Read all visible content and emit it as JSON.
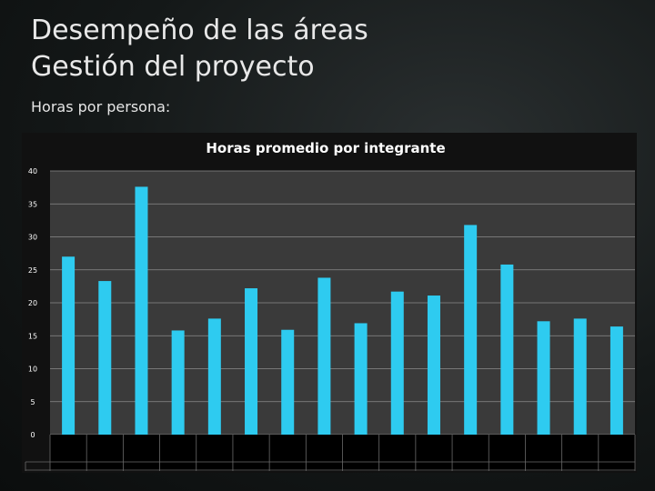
{
  "slide": {
    "title_line1": "Desempeño de las áreas",
    "title_line2": "Gestión del proyecto",
    "subtitle": "Horas por persona:"
  },
  "colors": {
    "bar": "#2ecbf0",
    "plot_bg": "#3a3a3a",
    "chart_bg": "#111111",
    "grid": "#8c8c8c",
    "text": "#ffffff"
  },
  "chart_data": {
    "type": "bar",
    "title": "Horas promedio por integrante",
    "xlabel": "",
    "ylabel": "",
    "ylim": [
      0,
      40
    ],
    "yticks": [
      0,
      5,
      10,
      15,
      20,
      25,
      30,
      35,
      40
    ],
    "grid": true,
    "categories": [
      "",
      "",
      "",
      "",
      "",
      "",
      "",
      "",
      "",
      "",
      "",
      "",
      "",
      "",
      "",
      ""
    ],
    "values": [
      27,
      23.3,
      37.6,
      15.8,
      17.6,
      22.2,
      15.9,
      23.8,
      16.9,
      21.7,
      21.1,
      31.8,
      25.8,
      17.2,
      17.6,
      16.4
    ]
  }
}
